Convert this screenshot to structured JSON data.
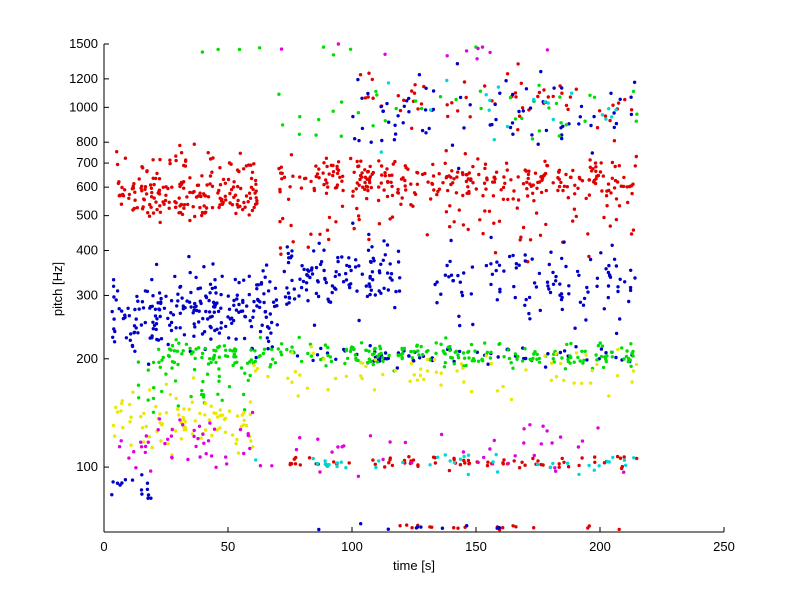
{
  "chart_data": {
    "type": "scatter",
    "title": "",
    "xlabel": "time [s]",
    "ylabel": "pitch [Hz]",
    "xlim": [
      0,
      250
    ],
    "ylim": [
      66,
      1500
    ],
    "yscale": "log",
    "grid": false,
    "legend": "none",
    "x_ticks": [
      0,
      50,
      100,
      150,
      200,
      250
    ],
    "x_tick_labels": [
      "0",
      "50",
      "100",
      "150",
      "200",
      "250"
    ],
    "y_ticks": [
      100,
      200,
      300,
      400,
      500,
      600,
      700,
      800,
      1000,
      1200,
      1500
    ],
    "y_tick_labels": [
      "100",
      "200",
      "300",
      "400",
      "500",
      "600",
      "700",
      "800",
      "1000",
      "1200",
      "1500"
    ],
    "colors": {
      "red": "#e00000",
      "blue": "#0000c8",
      "green": "#00dd00",
      "yellow": "#e8e800",
      "magenta": "#e000e0",
      "cyan": "#00d8d8"
    },
    "series": [
      {
        "color": "red",
        "segments": [
          {
            "x0": 5,
            "x1": 62,
            "y": 560,
            "spread": 0.08,
            "n": 170
          },
          {
            "x0": 4,
            "x1": 62,
            "y": 720,
            "spread": 0.05,
            "n": 35
          },
          {
            "x0": 70,
            "x1": 215,
            "y": 630,
            "spread": 0.07,
            "n": 300
          },
          {
            "x0": 70,
            "x1": 215,
            "y": 480,
            "spread": 0.1,
            "n": 60
          },
          {
            "x0": 100,
            "x1": 215,
            "y": 1050,
            "spread": 0.1,
            "n": 60
          },
          {
            "x0": 75,
            "x1": 215,
            "y": 103,
            "spread": 0.02,
            "n": 80
          },
          {
            "x0": 110,
            "x1": 212,
            "y": 68,
            "spread": 0.01,
            "n": 18
          }
        ]
      },
      {
        "color": "blue",
        "segments": [
          {
            "x0": 3,
            "x1": 70,
            "y": 270,
            "spread": 0.13,
            "n": 230
          },
          {
            "x0": 72,
            "x1": 120,
            "y": 340,
            "spread": 0.12,
            "n": 120
          },
          {
            "x0": 130,
            "x1": 215,
            "y": 330,
            "spread": 0.12,
            "n": 110
          },
          {
            "x0": 100,
            "x1": 215,
            "y": 950,
            "spread": 0.12,
            "n": 80
          },
          {
            "x0": 70,
            "x1": 215,
            "y": 205,
            "spread": 0.03,
            "n": 70
          },
          {
            "x0": 2,
            "x1": 20,
            "y": 90,
            "spread": 0.05,
            "n": 15
          },
          {
            "x0": 80,
            "x1": 200,
            "y": 68,
            "spread": 0.01,
            "n": 10
          }
        ]
      },
      {
        "color": "green",
        "segments": [
          {
            "x0": 20,
            "x1": 215,
            "y": 205,
            "spread": 0.04,
            "n": 260
          },
          {
            "x0": 10,
            "x1": 60,
            "y": 170,
            "spread": 0.1,
            "n": 40
          },
          {
            "x0": 70,
            "x1": 215,
            "y": 950,
            "spread": 0.1,
            "n": 40
          },
          {
            "x0": 30,
            "x1": 200,
            "y": 1450,
            "spread": 0.02,
            "n": 8
          }
        ]
      },
      {
        "color": "yellow",
        "segments": [
          {
            "x0": 3,
            "x1": 60,
            "y": 135,
            "spread": 0.1,
            "n": 90
          },
          {
            "x0": 60,
            "x1": 215,
            "y": 185,
            "spread": 0.08,
            "n": 70
          }
        ]
      },
      {
        "color": "magenta",
        "segments": [
          {
            "x0": 5,
            "x1": 215,
            "y": 110,
            "spread": 0.08,
            "n": 60
          },
          {
            "x0": 10,
            "x1": 200,
            "y": 1450,
            "spread": 0.03,
            "n": 10
          },
          {
            "x0": 2,
            "x1": 60,
            "y": 125,
            "spread": 0.1,
            "n": 25
          }
        ]
      },
      {
        "color": "cyan",
        "segments": [
          {
            "x0": 60,
            "x1": 215,
            "y": 103,
            "spread": 0.03,
            "n": 40
          },
          {
            "x0": 100,
            "x1": 215,
            "y": 1000,
            "spread": 0.1,
            "n": 20
          }
        ]
      }
    ]
  }
}
